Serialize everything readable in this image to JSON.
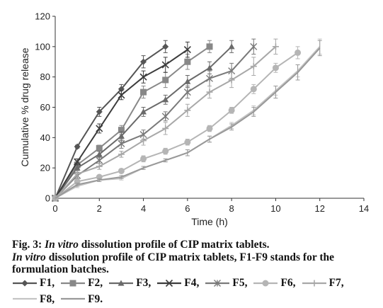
{
  "chart_data": {
    "type": "line",
    "title": "",
    "xlabel": "Time (h)",
    "ylabel": "Cumulative % drug release",
    "xlim": [
      0,
      14
    ],
    "ylim": [
      0,
      120
    ],
    "xticks": [
      0,
      2,
      4,
      6,
      8,
      10,
      12,
      14
    ],
    "yticks": [
      0,
      20,
      40,
      60,
      80,
      100,
      120
    ],
    "grid": false,
    "legend_position": "bottom",
    "series": [
      {
        "name": "F1",
        "color": "#555555",
        "marker": "diamond",
        "x": [
          0,
          1,
          2,
          3,
          4,
          5
        ],
        "y": [
          0,
          34,
          57,
          72,
          90,
          100
        ],
        "err": [
          0,
          1,
          3,
          3,
          4,
          4
        ]
      },
      {
        "name": "F2",
        "color": "#888888",
        "marker": "square",
        "x": [
          0,
          1,
          2,
          3,
          4,
          5,
          6,
          7
        ],
        "y": [
          0,
          22,
          33,
          45,
          70,
          78,
          90,
          100
        ],
        "err": [
          0,
          2,
          2,
          3,
          4,
          5,
          5,
          4
        ]
      },
      {
        "name": "F3",
        "color": "#6a6a6a",
        "marker": "triangle",
        "x": [
          0,
          1,
          2,
          3,
          4,
          5,
          6,
          7,
          8
        ],
        "y": [
          0,
          20,
          29,
          41,
          57,
          65,
          77,
          86,
          100
        ],
        "err": [
          0,
          2,
          2,
          3,
          3,
          3,
          4,
          4,
          4
        ]
      },
      {
        "name": "F4",
        "color": "#3c3c3c",
        "marker": "x",
        "x": [
          0,
          1,
          2,
          3,
          4,
          5,
          6
        ],
        "y": [
          0,
          24,
          46,
          68,
          80,
          88,
          98
        ],
        "err": [
          0,
          2,
          3,
          3,
          4,
          5,
          5
        ]
      },
      {
        "name": "F5",
        "color": "#7a7a7a",
        "marker": "star",
        "x": [
          0,
          1,
          2,
          3,
          4,
          5,
          6,
          7,
          8,
          9
        ],
        "y": [
          0,
          15,
          25,
          36,
          42,
          54,
          70,
          79,
          84,
          100
        ],
        "err": [
          0,
          2,
          2,
          3,
          3,
          3,
          4,
          5,
          5,
          5
        ]
      },
      {
        "name": "F6",
        "color": "#b5b5b5",
        "marker": "circle",
        "x": [
          0,
          1,
          2,
          3,
          4,
          5,
          6,
          7,
          8,
          9,
          10,
          11
        ],
        "y": [
          0,
          11,
          14,
          18,
          26,
          31,
          37,
          46,
          58,
          72,
          86,
          96
        ],
        "err": [
          0,
          1,
          1,
          1,
          2,
          2,
          2,
          2,
          2,
          3,
          3,
          4
        ]
      },
      {
        "name": "F7",
        "color": "#a8a8a8",
        "marker": "plus",
        "x": [
          0,
          1,
          2,
          3,
          4,
          5,
          6,
          7,
          8,
          9,
          10
        ],
        "y": [
          0,
          16,
          21,
          29,
          38,
          46,
          58,
          70,
          78,
          87,
          100
        ],
        "err": [
          0,
          2,
          2,
          2,
          3,
          4,
          4,
          4,
          5,
          6,
          5
        ]
      },
      {
        "name": "F8",
        "color": "#c4c4c4",
        "marker": "none",
        "x": [
          0,
          1,
          2,
          3,
          4,
          5,
          6,
          7,
          8,
          9,
          10,
          11,
          12
        ],
        "y": [
          0,
          8,
          12,
          13,
          20,
          25,
          30,
          39,
          48,
          58,
          71,
          84,
          100
        ],
        "err": [
          0,
          1,
          1,
          1,
          1,
          1,
          2,
          2,
          2,
          3,
          3,
          4,
          5
        ]
      },
      {
        "name": "F9",
        "color": "#999999",
        "marker": "none",
        "x": [
          0,
          1,
          2,
          3,
          4,
          5,
          6,
          7,
          8,
          9,
          10,
          11,
          12
        ],
        "y": [
          0,
          9,
          12,
          14,
          20,
          25,
          30,
          39,
          47,
          57,
          70,
          83,
          99
        ],
        "err": [
          0,
          1,
          1,
          1,
          1,
          1,
          2,
          2,
          2,
          3,
          4,
          5,
          5
        ]
      }
    ]
  },
  "caption": {
    "fig_label": "Fig. 3: ",
    "title_italic": "In vitro",
    "title_rest": " dissolution profile of CIP matrix tablets.",
    "desc_italic": "In vitro",
    "desc_rest": " dissolution profile of CIP matrix tablets, F1-F9 stands for the formulation batches."
  },
  "legend": {
    "entries": [
      {
        "label": "F1,"
      },
      {
        "label": "F2,"
      },
      {
        "label": "F3,"
      },
      {
        "label": "F4,"
      },
      {
        "label": "F5,"
      },
      {
        "label": "F6,"
      },
      {
        "label": "F7,"
      },
      {
        "label": "F8,"
      },
      {
        "label": "F9."
      }
    ]
  }
}
